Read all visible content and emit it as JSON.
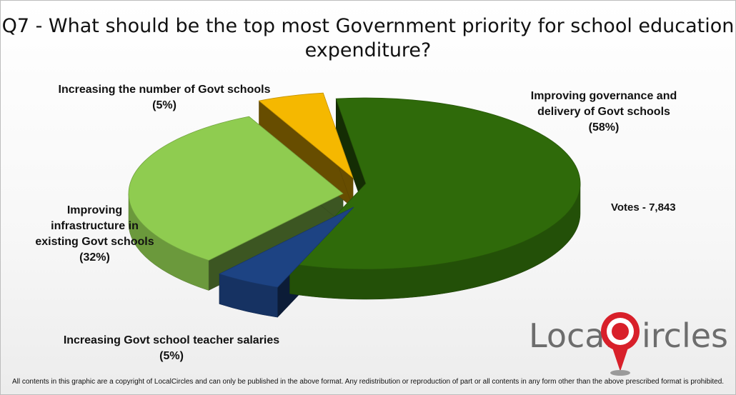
{
  "title_lines": [
    "Q7 - What should be the top most Government priority for school education",
    "expenditure?"
  ],
  "votes_label": "Votes - 7,843",
  "footer": "All contents in this graphic are a copyright of LocalCircles and can only be published in the above format. Any redistribution or reproduction of part or all contents in any form other than the above prescribed format is prohibited.",
  "logo": {
    "text_left": "Local",
    "text_right": "ircles",
    "colors": {
      "grey": "#6d6d6d",
      "red": "#d8202a"
    }
  },
  "chart_data": {
    "type": "pie",
    "style": "3d-exploded",
    "slices": [
      {
        "lines": [
          "Improving governance and",
          "delivery of Govt schools",
          "(58%)"
        ],
        "value": 58,
        "color": "#2f6a0a"
      },
      {
        "lines": [
          "Increasing Govt school teacher salaries",
          "(5%)"
        ],
        "value": 5,
        "color": "#1d4383"
      },
      {
        "lines": [
          "Improving",
          "infrastructure in",
          "existing Govt schools",
          "(32%)"
        ],
        "value": 32,
        "color": "#8fcc50"
      },
      {
        "lines": [
          "Increasing the number of Govt schools",
          "(5%)"
        ],
        "value": 5,
        "color": "#f5b800"
      }
    ]
  }
}
